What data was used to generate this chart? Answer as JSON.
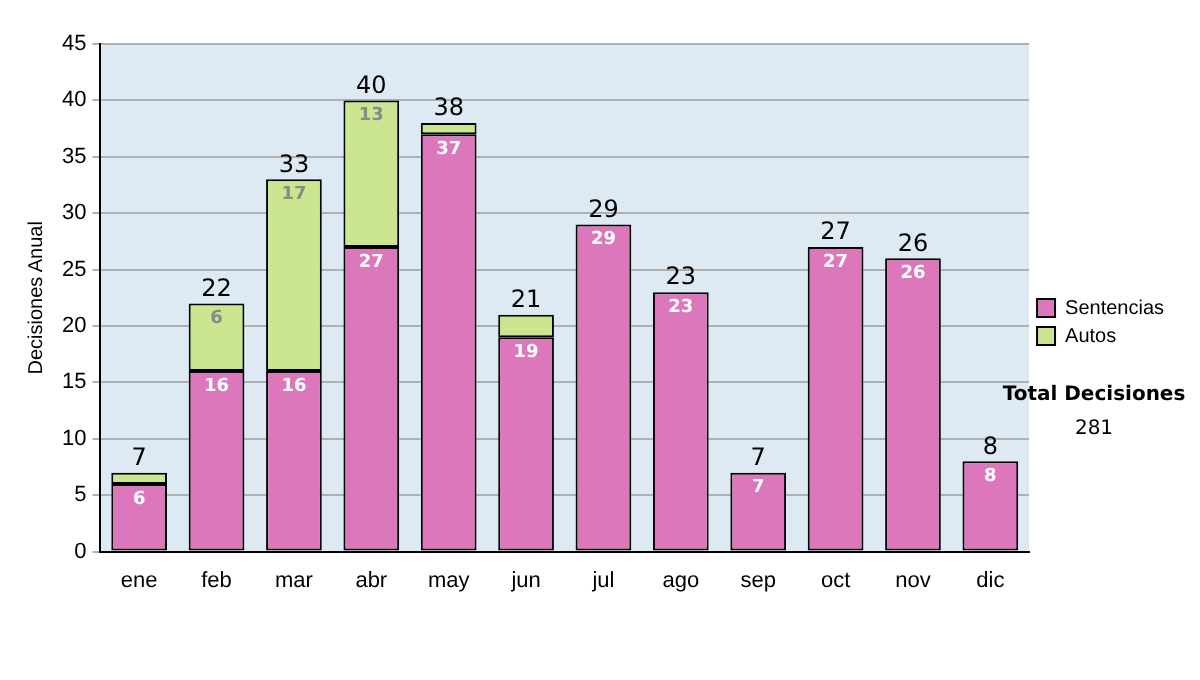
{
  "chart_data": {
    "type": "bar",
    "stacked": true,
    "ylabel": "Decisiones Anual",
    "categories": [
      "ene",
      "feb",
      "mar",
      "abr",
      "may",
      "jun",
      "jul",
      "ago",
      "sep",
      "oct",
      "nov",
      "dic"
    ],
    "series": [
      {
        "name": "Sentencias",
        "color": "#dd77bb",
        "values": [
          6,
          16,
          16,
          27,
          37,
          19,
          29,
          23,
          7,
          27,
          26,
          8
        ],
        "value_labels": [
          "6",
          "16",
          "16",
          "27",
          "37",
          "19",
          "29",
          "23",
          "7",
          "27",
          "26",
          "8"
        ]
      },
      {
        "name": "Autos",
        "color": "#cce690",
        "values": [
          1,
          6,
          17,
          13,
          1,
          2,
          0,
          0,
          0,
          0,
          0,
          0
        ],
        "value_labels": [
          null,
          "6",
          "17",
          "13",
          null,
          null,
          null,
          null,
          null,
          null,
          null,
          null
        ]
      }
    ],
    "totals": [
      "7",
      "22",
      "33",
      "40",
      "38",
      "21",
      "29",
      "23",
      "7",
      "27",
      "26",
      "8"
    ],
    "ylim": [
      0,
      45
    ],
    "yticks": [
      0,
      5,
      10,
      15,
      20,
      25,
      30,
      35,
      40,
      45
    ],
    "grid": "y",
    "legend": "right",
    "annotations": [
      "Total Decisiones",
      "281"
    ]
  }
}
